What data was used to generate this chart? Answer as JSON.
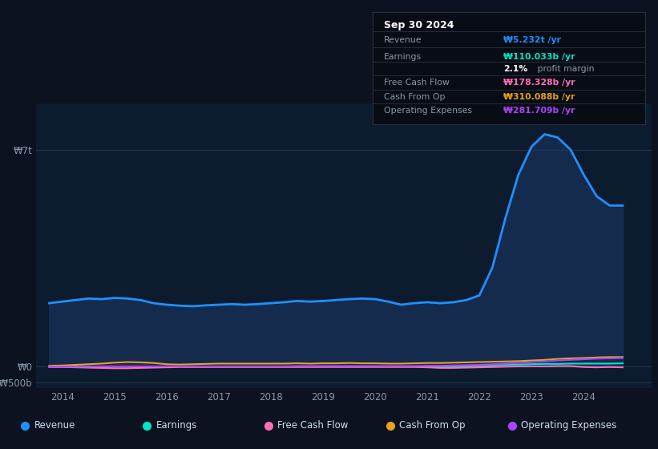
{
  "background_color": "#0c1220",
  "plot_bg_color": "#0d1b2e",
  "ylim": [
    -700000000000.0,
    8500000000000.0
  ],
  "xlim": [
    2013.5,
    2025.3
  ],
  "xticks": [
    2014,
    2015,
    2016,
    2017,
    2018,
    2019,
    2020,
    2021,
    2022,
    2023,
    2024
  ],
  "legend": [
    {
      "label": "Revenue",
      "color": "#1e90ff"
    },
    {
      "label": "Earnings",
      "color": "#00e5cc"
    },
    {
      "label": "Free Cash Flow",
      "color": "#ff6eb4"
    },
    {
      "label": "Cash From Op",
      "color": "#e8a020"
    },
    {
      "label": "Operating Expenses",
      "color": "#aa44ff"
    }
  ],
  "box_bg": "#080c14",
  "box_border": "#2a3040",
  "box_label_color": "#8899aa",
  "box_date_color": "#ffffff",
  "revenue_color": "#1e90ff",
  "revenue_fill": "#1a3a6a",
  "earnings_color": "#00e5cc",
  "fcf_color": "#ff6eb4",
  "cashop_color": "#e8a020",
  "opex_color": "#aa44ff"
}
